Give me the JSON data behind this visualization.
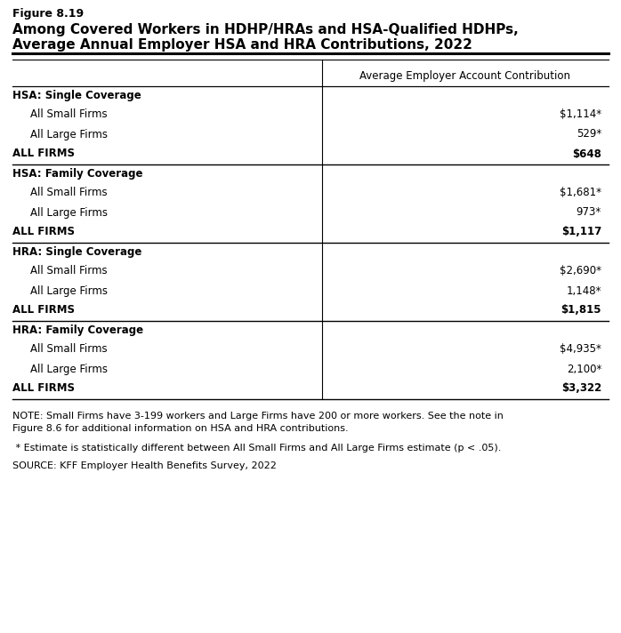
{
  "figure_label": "Figure 8.19",
  "title_line1": "Among Covered Workers in HDHP/HRAs and HSA-Qualified HDHPs,",
  "title_line2": "Average Annual Employer HSA and HRA Contributions, 2022",
  "col_header": "Average Employer Account Contribution",
  "sections": [
    {
      "header": "HSA: Single Coverage",
      "rows": [
        {
          "label": "All Small Firms",
          "value": "$1,114*",
          "indent": true,
          "bold": false
        },
        {
          "label": "All Large Firms",
          "value": "529*",
          "indent": true,
          "bold": false
        },
        {
          "label": "ALL FIRMS",
          "value": "$648",
          "indent": false,
          "bold": true
        }
      ]
    },
    {
      "header": "HSA: Family Coverage",
      "rows": [
        {
          "label": "All Small Firms",
          "value": "$1,681*",
          "indent": true,
          "bold": false
        },
        {
          "label": "All Large Firms",
          "value": "973*",
          "indent": true,
          "bold": false
        },
        {
          "label": "ALL FIRMS",
          "value": "$1,117",
          "indent": false,
          "bold": true
        }
      ]
    },
    {
      "header": "HRA: Single Coverage",
      "rows": [
        {
          "label": "All Small Firms",
          "value": "$2,690*",
          "indent": true,
          "bold": false
        },
        {
          "label": "All Large Firms",
          "value": "1,148*",
          "indent": true,
          "bold": false
        },
        {
          "label": "ALL FIRMS",
          "value": "$1,815",
          "indent": false,
          "bold": true
        }
      ]
    },
    {
      "header": "HRA: Family Coverage",
      "rows": [
        {
          "label": "All Small Firms",
          "value": "$4,935*",
          "indent": true,
          "bold": false
        },
        {
          "label": "All Large Firms",
          "value": "2,100*",
          "indent": true,
          "bold": false
        },
        {
          "label": "ALL FIRMS",
          "value": "$3,322",
          "indent": false,
          "bold": true
        }
      ]
    }
  ],
  "note1a": "NOTE: Small Firms have 3-199 workers and Large Firms have 200 or more workers. See the note in",
  "note1b": "Figure 8.6 for additional information on HSA and HRA contributions.",
  "note2": " * Estimate is statistically different between All Small Firms and All Large Firms estimate (p < .05).",
  "source": "SOURCE: KFF Employer Health Benefits Survey, 2022",
  "bg_color": "#ffffff",
  "text_color": "#000000",
  "line_color": "#000000"
}
